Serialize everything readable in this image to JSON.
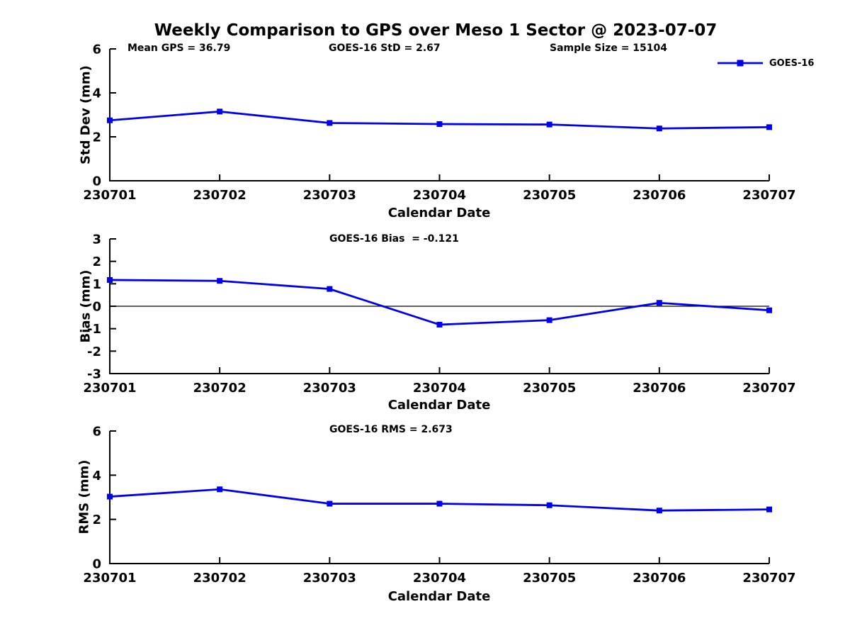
{
  "page": {
    "title": "Weekly Comparison to GPS over Meso 1 Sector @ 2023-07-07"
  },
  "annotations": {
    "mean_gps": "Mean GPS = 36.79",
    "std": "GOES-16 StD = 2.67",
    "sample_size": "Sample Size = 15104"
  },
  "legend": {
    "label": "GOES-16"
  },
  "colors": {
    "series": "#0000EE",
    "axis": "#000000",
    "zero_line": "#000000",
    "background": "#FFFFFF"
  },
  "chart_data": [
    {
      "type": "line",
      "name": "std-dev",
      "subtitle": "",
      "ylabel": "Std Dev (mm)",
      "xlabel": "Calendar Date",
      "categories": [
        "230701",
        "230702",
        "230703",
        "230704",
        "230705",
        "230706",
        "230707"
      ],
      "series": [
        {
          "name": "GOES-16",
          "values": [
            2.75,
            3.15,
            2.63,
            2.58,
            2.56,
            2.38,
            2.44
          ]
        }
      ],
      "ylim": [
        0,
        6
      ],
      "yticks": [
        0,
        2,
        4,
        6
      ],
      "zero_line": false,
      "grid": false,
      "legend_position": "top-right",
      "marker": "square"
    },
    {
      "type": "line",
      "name": "bias",
      "subtitle": "GOES-16 Bias  = -0.121",
      "ylabel": "Bias (mm)",
      "xlabel": "Calendar Date",
      "categories": [
        "230701",
        "230702",
        "230703",
        "230704",
        "230705",
        "230706",
        "230707"
      ],
      "series": [
        {
          "name": "GOES-16",
          "values": [
            1.17,
            1.13,
            0.77,
            -0.82,
            -0.62,
            0.15,
            -0.18
          ]
        }
      ],
      "ylim": [
        -3,
        3
      ],
      "yticks": [
        -3,
        -2,
        -1,
        0,
        1,
        2,
        3
      ],
      "zero_line": true,
      "grid": false,
      "marker": "square"
    },
    {
      "type": "line",
      "name": "rms",
      "subtitle": "GOES-16 RMS = 2.673",
      "ylabel": "RMS (mm)",
      "xlabel": "Calendar Date",
      "categories": [
        "230701",
        "230702",
        "230703",
        "230704",
        "230705",
        "230706",
        "230707"
      ],
      "series": [
        {
          "name": "GOES-16",
          "values": [
            3.03,
            3.36,
            2.71,
            2.71,
            2.64,
            2.4,
            2.45
          ]
        }
      ],
      "ylim": [
        0,
        6
      ],
      "yticks": [
        0,
        2,
        4,
        6
      ],
      "zero_line": false,
      "grid": false,
      "marker": "square"
    }
  ]
}
